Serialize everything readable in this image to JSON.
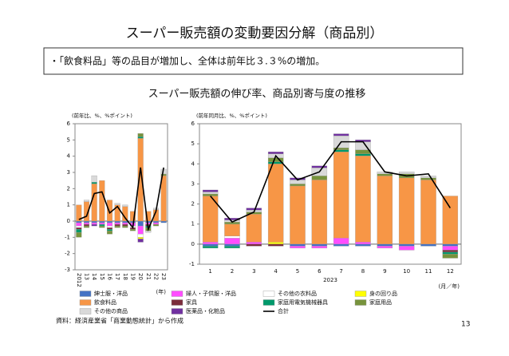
{
  "title": "スーパー販売額の変動要因分解（商品別）",
  "summary": "・「飲食料品」等の品目が増加し、全体は前年比３.３%の増加。",
  "subtitle": "スーパー販売額の伸び率、商品別寄与度の推移",
  "source": "資料：経済産業省「商業動態統計」から作成",
  "page_number": "13",
  "chart_data": [
    {
      "type": "bar",
      "y_label": "(前年比、%、%ポイント)",
      "x_unit": "(年)",
      "categories": [
        "2012",
        "13",
        "14",
        "15",
        "16",
        "17",
        "18",
        "19",
        "20",
        "21",
        "22",
        "23"
      ],
      "ylim": [
        -3,
        6
      ],
      "yticks": [
        -3,
        -2,
        -1,
        0,
        1,
        2,
        3,
        4,
        5,
        6
      ],
      "series": [
        {
          "name": "紳士服・洋品",
          "color": "#4472c4",
          "values": [
            -0.1,
            -0.1,
            -0.1,
            -0.1,
            -0.1,
            -0.1,
            -0.1,
            -0.1,
            -0.3,
            -0.1,
            -0.1,
            -0.1
          ]
        },
        {
          "name": "婦人・子供服・洋品",
          "color": "#ff4dff",
          "values": [
            -0.2,
            -0.1,
            -0.1,
            -0.1,
            -0.2,
            -0.1,
            -0.1,
            -0.2,
            -0.5,
            -0.1,
            -0.1,
            0
          ]
        },
        {
          "name": "その他の衣料品",
          "color": "#ffffff",
          "values": [
            -0.1,
            0,
            0,
            0,
            -0.1,
            0,
            0,
            -0.1,
            -0.2,
            0,
            0,
            0
          ]
        },
        {
          "name": "身の回り品",
          "color": "#ffff00",
          "values": [
            0,
            0,
            0,
            0,
            0,
            0,
            0,
            0,
            -0.1,
            0,
            0,
            0
          ]
        },
        {
          "name": "飲食料品",
          "color": "#f79646",
          "values": [
            1.0,
            1.2,
            2.3,
            2.5,
            1.3,
            1.0,
            0.9,
            0.6,
            5.1,
            0.6,
            0.7,
            2.8
          ]
        },
        {
          "name": "家具",
          "color": "#7b2c3b",
          "values": [
            -0.1,
            -0.1,
            0,
            0,
            -0.1,
            -0.1,
            -0.1,
            -0.1,
            0,
            -0.1,
            0,
            0
          ]
        },
        {
          "name": "家庭用電気機械器具",
          "color": "#00996b",
          "values": [
            -0.2,
            0,
            0.1,
            -0.1,
            -0.1,
            0,
            0,
            0,
            0.1,
            -0.1,
            0,
            0
          ]
        },
        {
          "name": "家庭用品",
          "color": "#77933c",
          "values": [
            -0.3,
            -0.1,
            0,
            -0.1,
            -0.2,
            -0.1,
            -0.1,
            -0.1,
            0.2,
            -0.2,
            -0.1,
            0.1
          ]
        },
        {
          "name": "その他の商品",
          "color": "#d9d9d9",
          "values": [
            0,
            0.1,
            0.4,
            0,
            0,
            0.1,
            0.1,
            0,
            0,
            -0.1,
            0.1,
            0.3
          ]
        },
        {
          "name": "医薬品・化粧品",
          "color": "#7030a0",
          "values": [
            0,
            0,
            -0.1,
            0,
            0,
            0,
            0,
            0,
            -0.2,
            0,
            0,
            0
          ]
        },
        {
          "name": "合計",
          "color": "#000000",
          "type": "line",
          "values": [
            0.1,
            0.3,
            1.7,
            1.8,
            0.5,
            0.9,
            0.2,
            -0.4,
            3.3,
            -0.5,
            0.6,
            3.3
          ]
        }
      ]
    },
    {
      "type": "bar",
      "y_label": "(前年同月比、%、%ポイント)",
      "x_unit": "(月／年)",
      "x_label": "2023",
      "categories": [
        "1",
        "2",
        "3",
        "4",
        "5",
        "6",
        "7",
        "8",
        "9",
        "10",
        "11",
        "12"
      ],
      "ylim": [
        -1,
        6
      ],
      "yticks": [
        -1,
        0,
        1,
        2,
        3,
        4,
        5,
        6
      ],
      "series": [
        {
          "values": [
            -0.1,
            -0.1,
            0,
            0,
            -0.1,
            -0.1,
            -0.1,
            -0.1,
            -0.1,
            -0.1,
            -0.1,
            -0.1
          ]
        },
        {
          "values": [
            0.1,
            0.3,
            0.1,
            0,
            -0.1,
            -0.1,
            0.3,
            0.1,
            -0.1,
            -0.2,
            0,
            -0.2
          ]
        },
        {
          "values": [
            0,
            0.1,
            0,
            0,
            0,
            0,
            0,
            0,
            0,
            0,
            0,
            0
          ]
        },
        {
          "values": [
            0,
            0,
            0,
            0.1,
            0,
            0,
            0,
            0,
            0,
            0,
            0,
            0
          ]
        },
        {
          "values": [
            2.3,
            0.6,
            1.4,
            3.9,
            2.9,
            3.2,
            4.3,
            4.3,
            3.4,
            3.3,
            3.2,
            2.4
          ]
        },
        {
          "values": [
            0,
            0,
            -0.1,
            -0.1,
            0,
            0,
            0,
            0,
            0,
            0,
            0,
            -0.1
          ]
        },
        {
          "values": [
            -0.1,
            -0.1,
            0,
            0.1,
            0,
            0,
            0.1,
            0.1,
            0,
            0,
            0,
            -0.1
          ]
        },
        {
          "values": [
            0.1,
            0.1,
            0.1,
            0.2,
            0.1,
            0.2,
            0.1,
            0.2,
            0.1,
            0.2,
            0.1,
            -0.2
          ]
        },
        {
          "values": [
            0.1,
            0.1,
            0.1,
            0.2,
            0.2,
            0.4,
            0.6,
            0.4,
            0.1,
            0.1,
            0.1,
            0
          ]
        },
        {
          "values": [
            0.1,
            0.1,
            0.1,
            0.1,
            0.1,
            0.1,
            0.1,
            0.1,
            0,
            0,
            0,
            0
          ]
        },
        {
          "values": [
            2.4,
            1.1,
            1.6,
            4.4,
            3.2,
            3.6,
            5.1,
            5.1,
            3.6,
            3.4,
            3.5,
            1.8
          ]
        }
      ]
    }
  ]
}
